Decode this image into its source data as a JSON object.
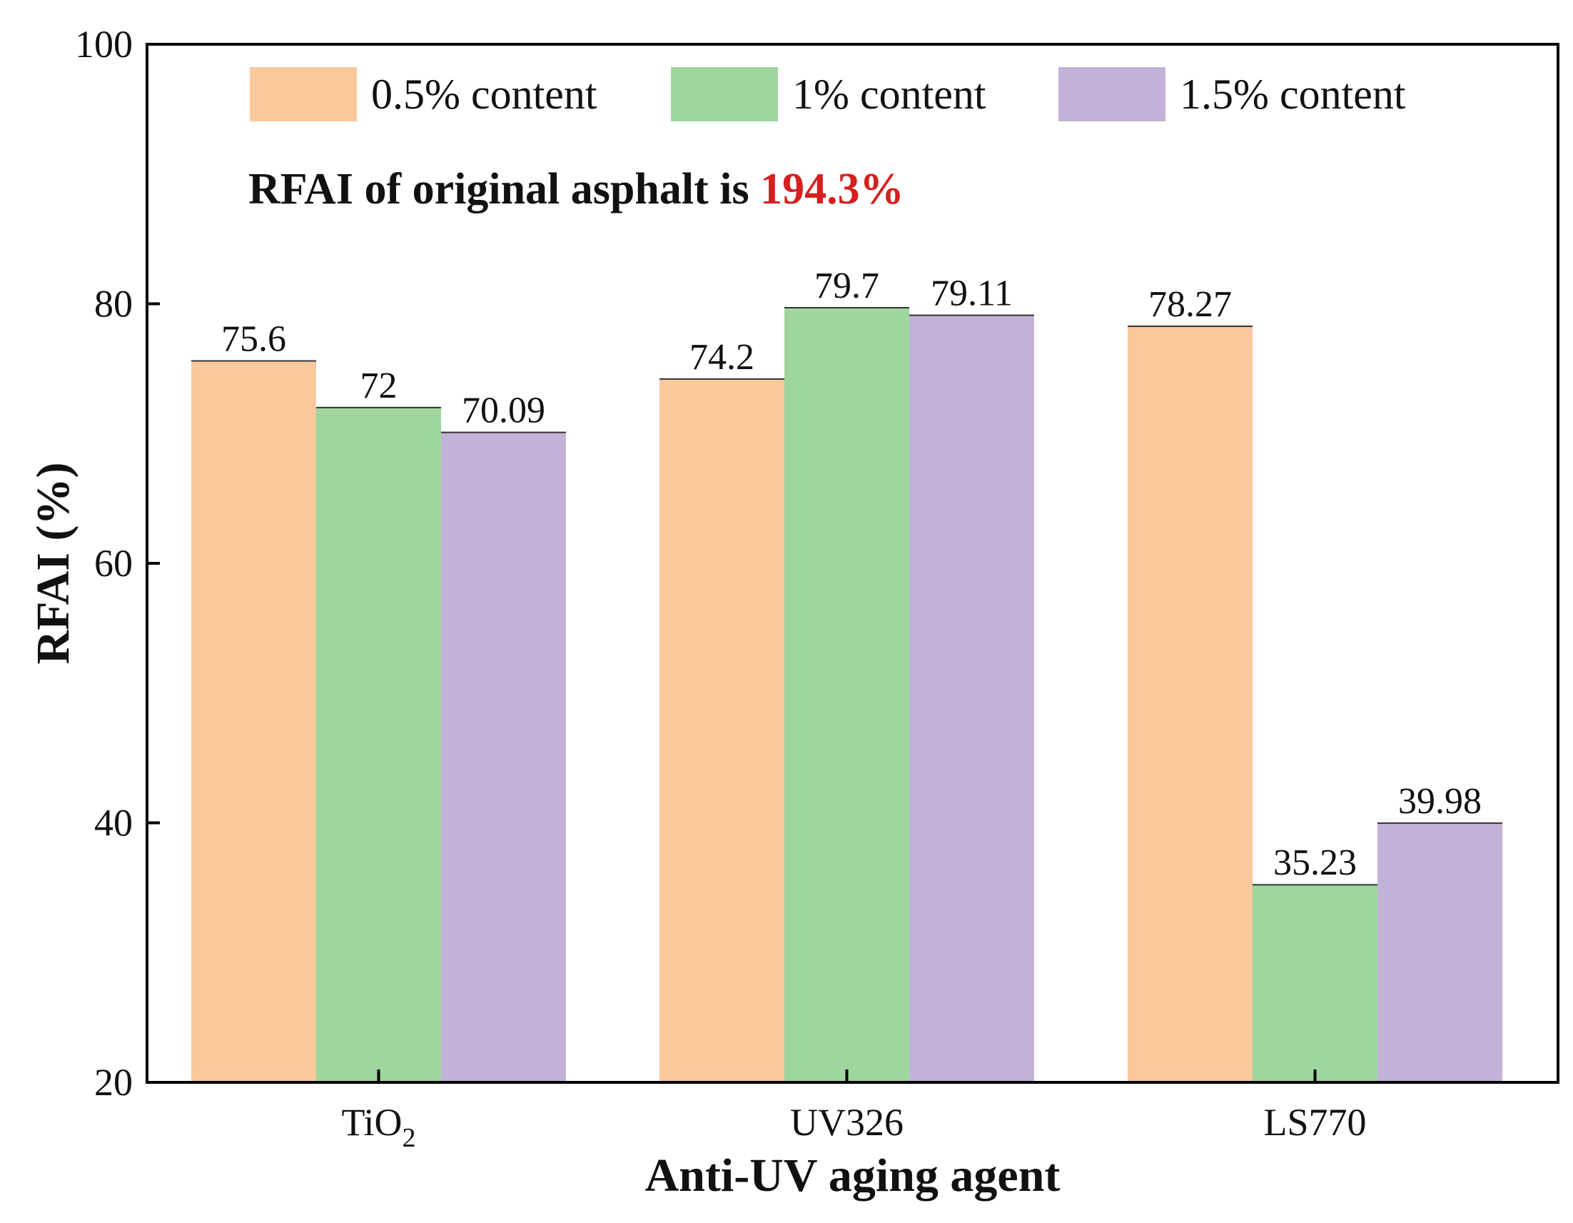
{
  "chart_data": {
    "type": "bar",
    "categories": [
      {
        "label": "TiO",
        "sub": "2"
      },
      {
        "label": "UV326",
        "sub": ""
      },
      {
        "label": "LS770",
        "sub": ""
      }
    ],
    "series": [
      {
        "name": "0.5% content",
        "color": "#F9C89B",
        "values": [
          75.6,
          74.2,
          78.27
        ],
        "labels": [
          "75.6",
          "74.2",
          "78.27"
        ]
      },
      {
        "name": "1% content",
        "color": "#9ED69E",
        "values": [
          72,
          79.7,
          35.23
        ],
        "labels": [
          "72",
          "79.7",
          "35.23"
        ]
      },
      {
        "name": "1.5% content",
        "color": "#C3B2D7",
        "values": [
          70.09,
          79.11,
          39.98
        ],
        "labels": [
          "70.09",
          "79.11",
          "39.98"
        ]
      }
    ],
    "xlabel": "Anti-UV aging agent",
    "ylabel": "RFAI (%)",
    "ylim": [
      20,
      100
    ],
    "yticks": [
      20,
      40,
      60,
      80,
      100
    ],
    "grid": false,
    "legend_position": "top",
    "annotation": {
      "prefix": "RFAI of original asphalt is ",
      "highlight": "194.3%",
      "highlight_color": "#D61F1F"
    }
  }
}
